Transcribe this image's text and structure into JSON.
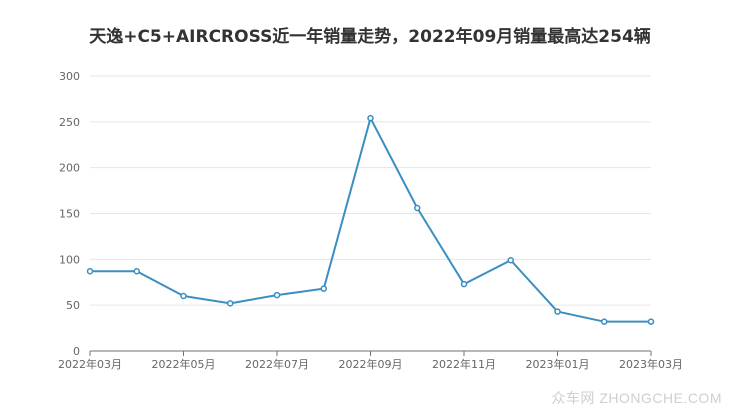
{
  "chart_data": {
    "type": "line",
    "title": "天逸+C5+AIRCROSS近一年销量走势，2022年09月销量最高达254辆",
    "x": [
      "2022年03月",
      "2022年04月",
      "2022年05月",
      "2022年06月",
      "2022年07月",
      "2022年08月",
      "2022年09月",
      "2022年10月",
      "2022年11月",
      "2022年12月",
      "2023年01月",
      "2023年02月",
      "2023年03月"
    ],
    "x_tick_labels": [
      "2022年03月",
      "2022年05月",
      "2022年07月",
      "2022年09月",
      "2022年11月",
      "2023年01月",
      "2023年03月"
    ],
    "series": [
      {
        "values": [
          87,
          87,
          60,
          52,
          61,
          68,
          254,
          156,
          73,
          99,
          43,
          32,
          32
        ],
        "color": "#3a8fc0"
      }
    ],
    "y_ticks": [
      "0",
      "50",
      "100",
      "150",
      "200",
      "250",
      "300"
    ],
    "ylim": [
      0,
      300
    ],
    "grid": true,
    "legend": "none"
  },
  "watermark": "众车网 ZHONGCHE.COM"
}
